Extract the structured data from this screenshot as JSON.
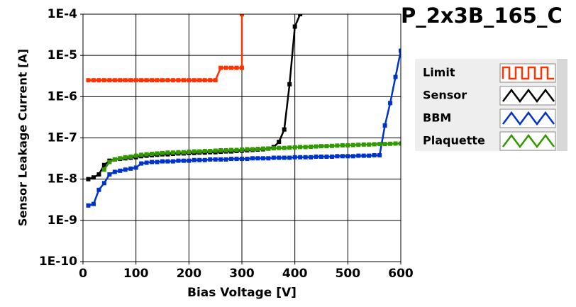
{
  "chart_data": {
    "type": "line",
    "title": "P_2x3B_165_C",
    "x_label": "Bias Voltage [V]",
    "y_label": "Sensor Leakage Current [A]",
    "xlim": [
      0,
      600
    ],
    "xticks": [
      0,
      100,
      200,
      300,
      400,
      500,
      600
    ],
    "ylim": [
      1e-10,
      0.0001
    ],
    "log_y": true,
    "grid": true,
    "legend": "right",
    "yticks": [
      {
        "value": 1e-10,
        "label": "1E-10"
      },
      {
        "value": 1e-09,
        "label": "1E-9"
      },
      {
        "value": 1e-08,
        "label": "1E-8"
      },
      {
        "value": 1e-07,
        "label": "1E-7"
      },
      {
        "value": 1e-06,
        "label": "1E-6"
      },
      {
        "value": 1e-05,
        "label": "1E-5"
      },
      {
        "value": 0.0001,
        "label": "1E-4"
      }
    ],
    "series": [
      {
        "name": "Limit",
        "color": "#ff3300",
        "x": [
          10,
          20,
          30,
          40,
          50,
          60,
          70,
          80,
          90,
          100,
          110,
          120,
          130,
          140,
          150,
          160,
          170,
          180,
          190,
          200,
          210,
          220,
          230,
          240,
          250,
          260,
          270,
          280,
          290,
          300,
          300
        ],
        "values": [
          2.5e-06,
          2.5e-06,
          2.5e-06,
          2.5e-06,
          2.5e-06,
          2.5e-06,
          2.5e-06,
          2.5e-06,
          2.5e-06,
          2.5e-06,
          2.5e-06,
          2.5e-06,
          2.5e-06,
          2.5e-06,
          2.5e-06,
          2.5e-06,
          2.5e-06,
          2.5e-06,
          2.5e-06,
          2.5e-06,
          2.5e-06,
          2.5e-06,
          2.5e-06,
          2.5e-06,
          2.5e-06,
          5e-06,
          5e-06,
          5e-06,
          5e-06,
          5e-06,
          0.0001
        ]
      },
      {
        "name": "Sensor",
        "color": "#000000",
        "x": [
          10,
          20,
          30,
          40,
          50,
          60,
          70,
          80,
          90,
          100,
          110,
          120,
          130,
          140,
          150,
          160,
          170,
          180,
          190,
          200,
          210,
          220,
          230,
          240,
          250,
          260,
          270,
          280,
          290,
          300,
          310,
          320,
          330,
          340,
          350,
          360,
          370,
          380,
          390,
          400,
          410
        ],
        "values": [
          1e-08,
          1.1e-08,
          1.3e-08,
          2.2e-08,
          2.8e-08,
          3e-08,
          3.1e-08,
          3.2e-08,
          3.3e-08,
          3.4e-08,
          3.6e-08,
          3.7e-08,
          3.8e-08,
          3.9e-08,
          4e-08,
          4e-08,
          4.1e-08,
          4.2e-08,
          4.2e-08,
          4.3e-08,
          4.3e-08,
          4.4e-08,
          4.4e-08,
          4.5e-08,
          4.5e-08,
          4.6e-08,
          4.7e-08,
          4.7e-08,
          4.8e-08,
          4.9e-08,
          5e-08,
          5.1e-08,
          5.2e-08,
          5.3e-08,
          5.5e-08,
          6e-08,
          8e-08,
          1.6e-07,
          2e-06,
          5e-05,
          0.0001
        ]
      },
      {
        "name": "BBM",
        "color": "#0033cc",
        "x": [
          10,
          20,
          30,
          40,
          50,
          60,
          70,
          80,
          90,
          100,
          110,
          120,
          130,
          140,
          150,
          160,
          170,
          180,
          190,
          200,
          210,
          220,
          230,
          240,
          250,
          260,
          270,
          280,
          290,
          300,
          310,
          320,
          330,
          340,
          350,
          360,
          370,
          380,
          390,
          400,
          410,
          420,
          430,
          440,
          450,
          460,
          470,
          480,
          490,
          500,
          510,
          520,
          530,
          540,
          550,
          560,
          570,
          580,
          590,
          600
        ],
        "values": [
          2.3e-09,
          2.5e-09,
          5.5e-09,
          8e-09,
          1.3e-08,
          1.5e-08,
          1.6e-08,
          1.7e-08,
          1.8e-08,
          1.9e-08,
          2.4e-08,
          2.5e-08,
          2.6e-08,
          2.6e-08,
          2.7e-08,
          2.7e-08,
          2.7e-08,
          2.8e-08,
          2.8e-08,
          2.8e-08,
          2.9e-08,
          2.9e-08,
          2.9e-08,
          3e-08,
          3e-08,
          3e-08,
          3e-08,
          3.1e-08,
          3.1e-08,
          3.1e-08,
          3.1e-08,
          3.2e-08,
          3.2e-08,
          3.2e-08,
          3.2e-08,
          3.3e-08,
          3.3e-08,
          3.3e-08,
          3.3e-08,
          3.4e-08,
          3.4e-08,
          3.4e-08,
          3.4e-08,
          3.5e-08,
          3.5e-08,
          3.5e-08,
          3.5e-08,
          3.6e-08,
          3.6e-08,
          3.6e-08,
          3.6e-08,
          3.7e-08,
          3.7e-08,
          3.7e-08,
          3.8e-08,
          3.8e-08,
          2e-07,
          7e-07,
          3e-06,
          1.3e-05
        ]
      },
      {
        "name": "Plaquette",
        "color": "#339900",
        "x": [
          40,
          50,
          60,
          70,
          80,
          90,
          100,
          110,
          120,
          130,
          140,
          150,
          160,
          170,
          180,
          190,
          200,
          210,
          220,
          230,
          240,
          250,
          260,
          270,
          280,
          290,
          300,
          310,
          320,
          330,
          340,
          350,
          360,
          370,
          380,
          390,
          400,
          410,
          420,
          430,
          440,
          450,
          460,
          470,
          480,
          490,
          500,
          510,
          520,
          530,
          540,
          550,
          560,
          570,
          580,
          590,
          600
        ],
        "values": [
          1.7e-08,
          2.6e-08,
          3e-08,
          3.2e-08,
          3.4e-08,
          3.5e-08,
          3.7e-08,
          3.9e-08,
          4e-08,
          4.1e-08,
          4.2e-08,
          4.3e-08,
          4.4e-08,
          4.4e-08,
          4.5e-08,
          4.5e-08,
          4.6e-08,
          4.7e-08,
          4.7e-08,
          4.8e-08,
          4.8e-08,
          4.9e-08,
          5e-08,
          5e-08,
          5.1e-08,
          5.1e-08,
          5.2e-08,
          5.3e-08,
          5.3e-08,
          5.4e-08,
          5.5e-08,
          5.5e-08,
          5.6e-08,
          5.7e-08,
          5.7e-08,
          5.8e-08,
          5.9e-08,
          6e-08,
          6e-08,
          6.1e-08,
          6.2e-08,
          6.3e-08,
          6.3e-08,
          6.4e-08,
          6.5e-08,
          6.6e-08,
          6.6e-08,
          6.7e-08,
          6.8e-08,
          6.9e-08,
          6.9e-08,
          7e-08,
          7.1e-08,
          7.1e-08,
          7.2e-08,
          7.3e-08,
          7.3e-08
        ]
      }
    ]
  }
}
